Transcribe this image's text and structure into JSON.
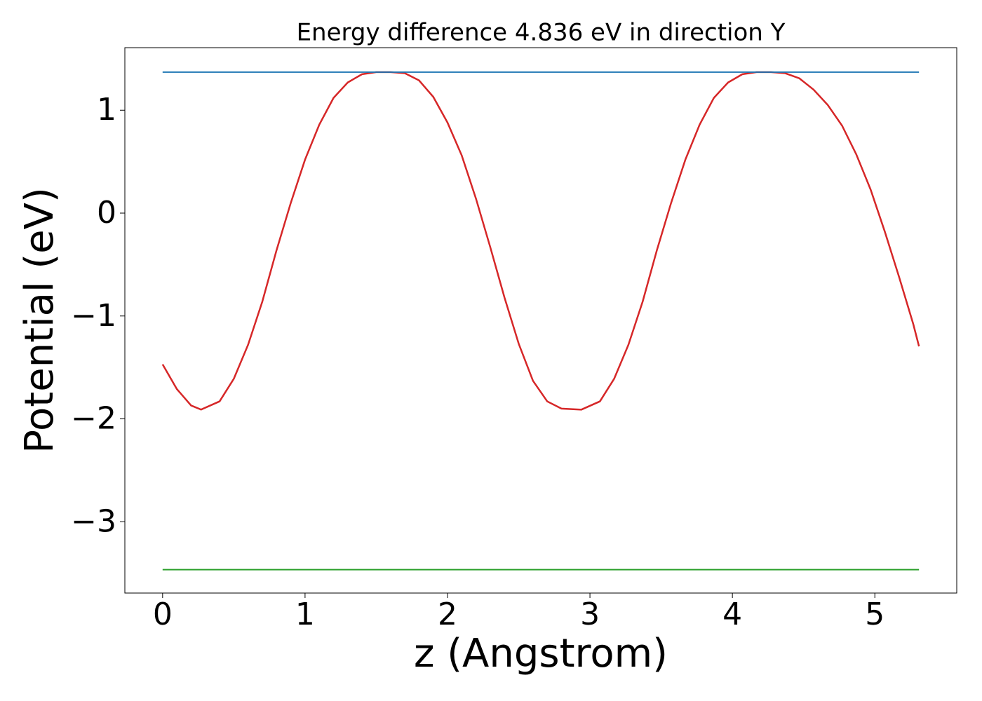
{
  "chart_data": {
    "type": "line",
    "title": "Energy difference 4.836 eV in direction Y",
    "xlabel": "z (Angstrom)",
    "ylabel": "Potential (eV)",
    "series": [
      {
        "color": "#d62728",
        "x": [
          0,
          0.1,
          0.2,
          0.27,
          0.4,
          0.5,
          0.6,
          0.7,
          0.8,
          0.9,
          1.0,
          1.1,
          1.2,
          1.3,
          1.4,
          1.5,
          1.6,
          1.7,
          1.8,
          1.9,
          2.0,
          2.1,
          2.2,
          2.3,
          2.4,
          2.5,
          2.6,
          2.7,
          2.8,
          2.94,
          3.07,
          3.17,
          3.27,
          3.37,
          3.47,
          3.57,
          3.67,
          3.77,
          3.87,
          3.97,
          4.07,
          4.17,
          4.27,
          4.37,
          4.47,
          4.57,
          4.67,
          4.77,
          4.87,
          4.97,
          5.07,
          5.17,
          5.27,
          5.31
        ],
        "values": [
          -1.47,
          -1.71,
          -1.87,
          -1.91,
          -1.83,
          -1.61,
          -1.28,
          -0.86,
          -0.36,
          0.1,
          0.52,
          0.86,
          1.12,
          1.27,
          1.35,
          1.37,
          1.37,
          1.36,
          1.29,
          1.13,
          0.88,
          0.56,
          0.14,
          -0.33,
          -0.82,
          -1.27,
          -1.63,
          -1.83,
          -1.9,
          -1.91,
          -1.83,
          -1.61,
          -1.28,
          -0.86,
          -0.36,
          0.1,
          0.52,
          0.86,
          1.12,
          1.27,
          1.35,
          1.37,
          1.37,
          1.36,
          1.31,
          1.2,
          1.05,
          0.85,
          0.57,
          0.23,
          -0.18,
          -0.62,
          -1.08,
          -1.295
        ]
      },
      {
        "color": "#1f77b4",
        "x": [
          0,
          5.31
        ],
        "values": [
          1.37,
          1.37
        ]
      },
      {
        "color": "#2ca02c",
        "x": [
          0,
          5.31
        ],
        "values": [
          -3.466,
          -3.466
        ]
      }
    ],
    "xlim": [
      -0.265,
      5.575
    ],
    "xticks": [
      0,
      1,
      2,
      3,
      4,
      5
    ],
    "ylim": [
      -3.693,
      1.608
    ],
    "yticks": [
      {
        "value": -3,
        "label": "−3"
      },
      {
        "value": -2,
        "label": "−2"
      },
      {
        "value": -1,
        "label": "−1"
      },
      0,
      1
    ],
    "grid": false
  }
}
